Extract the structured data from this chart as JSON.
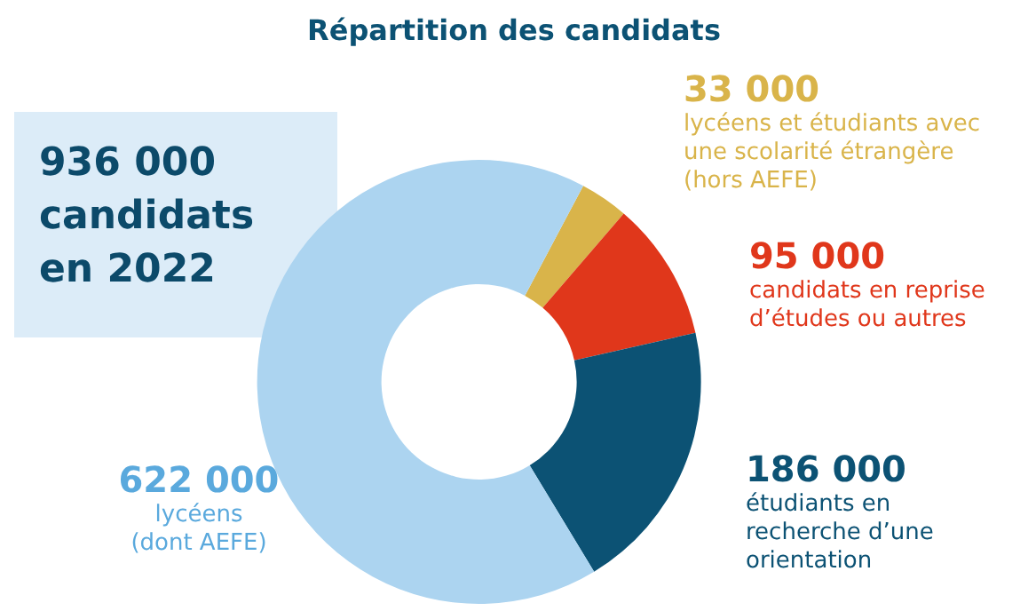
{
  "chart_data": {
    "type": "donut",
    "title": "Répartition des candidats",
    "categories": [
      "lycéens et étudiants avec une scolarité étrangère (hors AEFE)",
      "candidats en reprise d’études ou autres",
      "étudiants en recherche d’une orientation",
      "lycéens (dont AEFE)"
    ],
    "values": [
      33000,
      95000,
      186000,
      622000
    ],
    "value_labels": [
      "33 000",
      "95 000",
      "186 000",
      "622 000"
    ],
    "colors": [
      "#d9b44a",
      "#e0371b",
      "#0c5274",
      "#acd4f0"
    ],
    "annotations": [
      "936 000 candidats en 2022"
    ],
    "legend": false
  }
}
